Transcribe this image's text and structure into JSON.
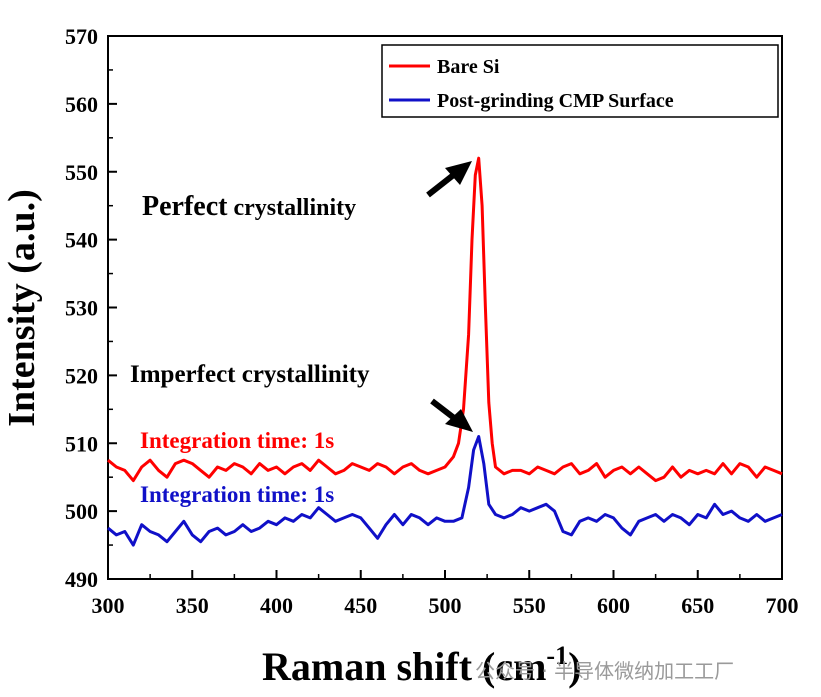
{
  "chart_data": {
    "type": "line",
    "xlabel": "Raman shift (cm",
    "xlabel_sup": "-1",
    "xlabel_close": ")",
    "ylabel": "Intensity (a.u.)",
    "xlim": [
      300,
      700
    ],
    "ylim": [
      490,
      570
    ],
    "xticks": [
      300,
      350,
      400,
      450,
      500,
      550,
      600,
      650,
      700
    ],
    "yticks": [
      490,
      500,
      510,
      520,
      530,
      540,
      550,
      560,
      570
    ],
    "grid": false,
    "legend_position": "top-right",
    "series": [
      {
        "name": "Bare Si",
        "color": "#ff0000",
        "x": [
          300,
          305,
          310,
          315,
          320,
          325,
          330,
          335,
          340,
          345,
          350,
          355,
          360,
          365,
          370,
          375,
          380,
          385,
          390,
          395,
          400,
          405,
          410,
          415,
          420,
          425,
          430,
          435,
          440,
          445,
          450,
          455,
          460,
          465,
          470,
          475,
          480,
          485,
          490,
          495,
          500,
          505,
          508,
          511,
          514,
          516,
          518,
          520,
          522,
          524,
          526,
          528,
          530,
          535,
          540,
          545,
          550,
          555,
          560,
          565,
          570,
          575,
          580,
          585,
          590,
          595,
          600,
          605,
          610,
          615,
          620,
          625,
          630,
          635,
          640,
          645,
          650,
          655,
          660,
          665,
          670,
          675,
          680,
          685,
          690,
          695,
          700
        ],
        "values": [
          507.5,
          506.5,
          506.0,
          504.5,
          506.5,
          507.5,
          506.0,
          505.0,
          507.0,
          507.5,
          507.0,
          506.0,
          505.0,
          506.5,
          506.0,
          507.0,
          506.5,
          505.5,
          507.0,
          506.0,
          506.5,
          505.5,
          506.5,
          507.0,
          506.0,
          507.5,
          506.5,
          505.5,
          506.0,
          507.0,
          506.5,
          506.0,
          507.0,
          506.5,
          505.5,
          506.5,
          507.0,
          506.0,
          505.5,
          506.0,
          506.5,
          508.0,
          510.0,
          515.0,
          526.0,
          540.0,
          549.5,
          552.0,
          545.0,
          530.0,
          516.0,
          510.0,
          506.5,
          505.5,
          506.0,
          506.0,
          505.5,
          506.5,
          506.0,
          505.5,
          506.5,
          507.0,
          505.5,
          506.0,
          507.0,
          505.0,
          506.0,
          506.5,
          505.5,
          506.5,
          505.5,
          504.5,
          505.0,
          506.5,
          505.0,
          506.0,
          505.5,
          506.0,
          505.5,
          507.0,
          505.5,
          507.0,
          506.5,
          505.0,
          506.5,
          506.0,
          505.5
        ]
      },
      {
        "name": "Post-grinding CMP Surface",
        "color": "#1010c8",
        "x": [
          300,
          305,
          310,
          315,
          320,
          325,
          330,
          335,
          340,
          345,
          350,
          355,
          360,
          365,
          370,
          375,
          380,
          385,
          390,
          395,
          400,
          405,
          410,
          415,
          420,
          425,
          430,
          435,
          440,
          445,
          450,
          455,
          460,
          465,
          470,
          475,
          480,
          485,
          490,
          495,
          500,
          505,
          510,
          514,
          517,
          520,
          523,
          526,
          530,
          535,
          540,
          545,
          550,
          555,
          560,
          565,
          570,
          575,
          580,
          585,
          590,
          595,
          600,
          605,
          610,
          615,
          620,
          625,
          630,
          635,
          640,
          645,
          650,
          655,
          660,
          665,
          670,
          675,
          680,
          685,
          690,
          695,
          700
        ],
        "values": [
          497.5,
          496.5,
          497.0,
          495.0,
          498.0,
          497.0,
          496.5,
          495.5,
          497.0,
          498.5,
          496.5,
          495.5,
          497.0,
          497.5,
          496.5,
          497.0,
          498.0,
          497.0,
          497.5,
          498.5,
          498.0,
          499.0,
          498.5,
          499.5,
          499.0,
          500.5,
          499.5,
          498.5,
          499.0,
          499.5,
          499.0,
          497.5,
          496.0,
          498.0,
          499.5,
          498.0,
          499.5,
          499.0,
          498.0,
          499.0,
          498.5,
          498.5,
          499.0,
          503.5,
          509.0,
          511.0,
          507.0,
          501.0,
          499.5,
          499.0,
          499.5,
          500.5,
          500.0,
          500.5,
          501.0,
          500.0,
          497.0,
          496.5,
          498.5,
          499.0,
          498.5,
          499.5,
          499.0,
          497.5,
          496.5,
          498.5,
          499.0,
          499.5,
          498.5,
          499.5,
          499.0,
          498.0,
          499.5,
          499.0,
          501.0,
          499.5,
          500.0,
          499.0,
          498.5,
          499.5,
          498.5,
          499.0,
          499.5
        ]
      }
    ],
    "annotations": [
      {
        "name": "perfect",
        "text_bold": "Perfect",
        "text_rest": " crystallinity",
        "target": [
          519,
          552
        ]
      },
      {
        "name": "imperfect",
        "text": "Imperfect crystallinity",
        "target": [
          519,
          511
        ]
      }
    ],
    "integration_labels": [
      {
        "text": "Integration time: 1s",
        "color": "#ff0000"
      },
      {
        "text": "Integration time: 1s",
        "color": "#1010c8"
      }
    ]
  },
  "watermark": {
    "text": "公众号 · 半导体微纳加工工厂"
  }
}
